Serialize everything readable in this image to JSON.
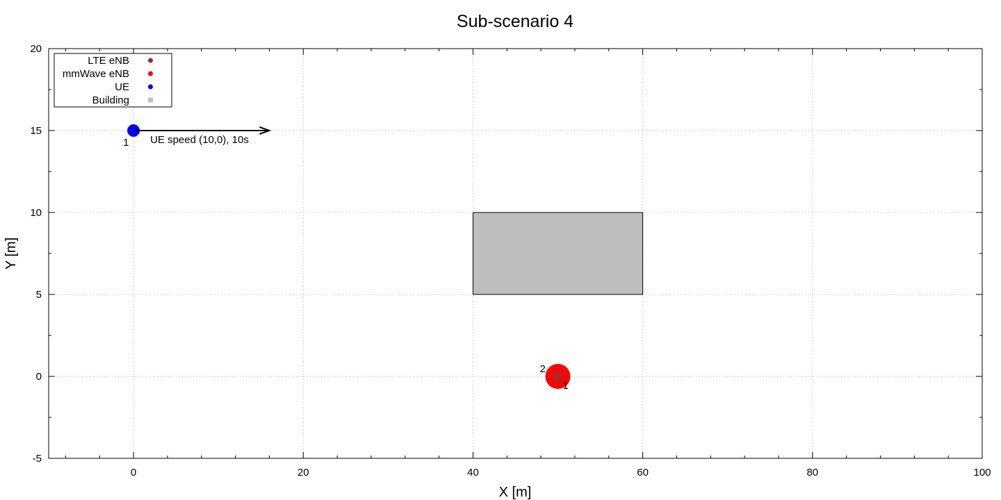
{
  "chart_data": {
    "type": "scatter",
    "title": "Sub-scenario 4",
    "xlabel": "X [m]",
    "ylabel": "Y [m]",
    "xlim": [
      -10,
      100
    ],
    "ylim": [
      -5,
      20
    ],
    "xticks": [
      0,
      20,
      40,
      60,
      80,
      100
    ],
    "yticks": [
      -5,
      0,
      5,
      10,
      15,
      20
    ],
    "x_minor_step": 4,
    "y_minor_step": 2.5,
    "grid": true,
    "legend_position": "top-left",
    "legend": [
      {
        "label": "LTE eNB",
        "color": "#a52a2a",
        "marker": "circle"
      },
      {
        "label": "mmWave eNB",
        "color": "#ff0000",
        "marker": "circle"
      },
      {
        "label": "UE",
        "color": "#0000ff",
        "marker": "circle"
      },
      {
        "label": "Building",
        "color": "#bebebe",
        "marker": "square"
      }
    ],
    "buildings": [
      {
        "x_min": 40,
        "x_max": 60,
        "y_min": 5,
        "y_max": 10,
        "color": "#bebebe"
      }
    ],
    "mmwave_enbs": [
      {
        "x": 50,
        "y": 0,
        "label": "2",
        "color": "#ff0000"
      }
    ],
    "lte_enbs": [
      {
        "x": 50,
        "y": 0,
        "label": "1",
        "color": "#a52a2a"
      }
    ],
    "ues": [
      {
        "x": 0,
        "y": 15,
        "label": "1",
        "color": "#0000ff"
      }
    ],
    "annotations": [
      {
        "type": "arrow",
        "from": [
          0,
          15
        ],
        "to": [
          16,
          15
        ],
        "text": "UE speed (10,0), 10s"
      }
    ]
  }
}
